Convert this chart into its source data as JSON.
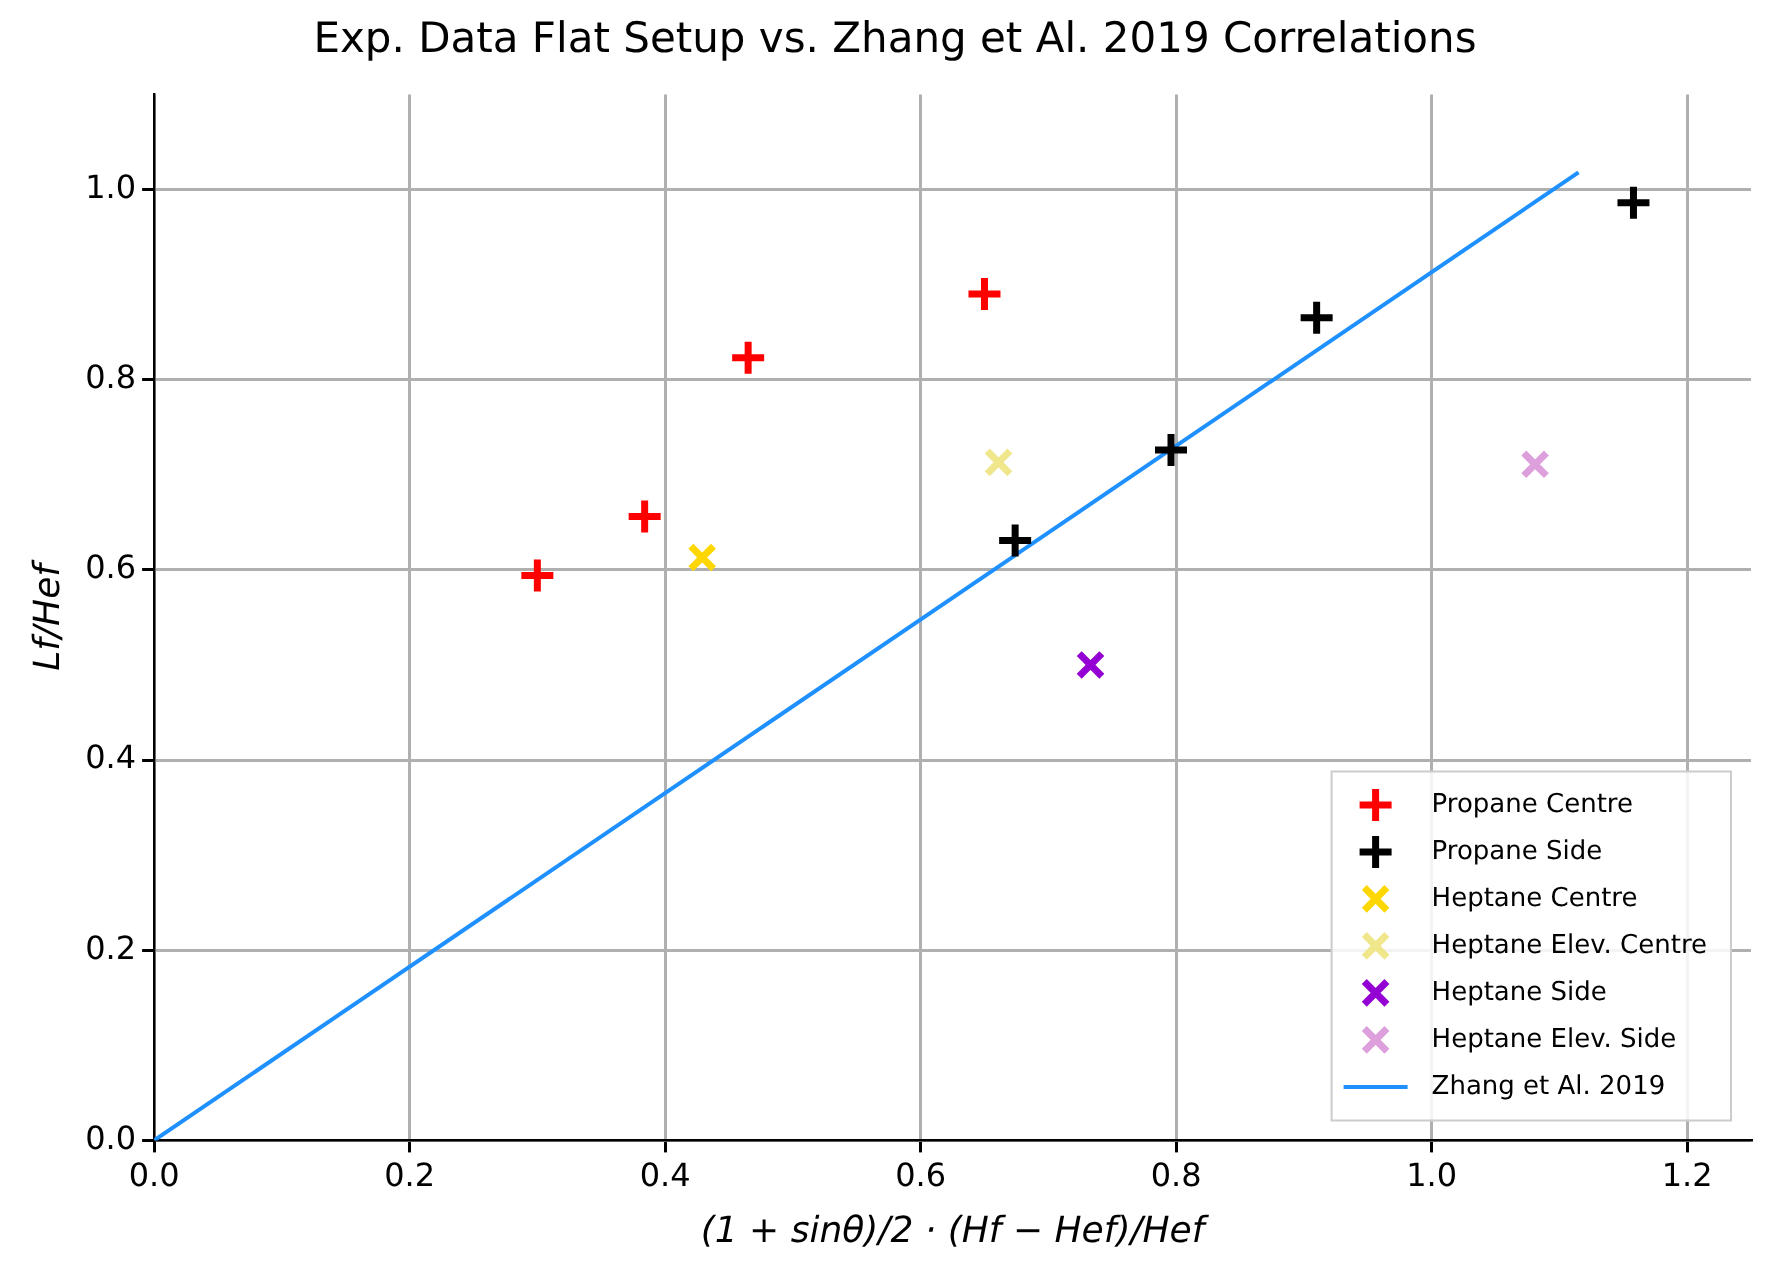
{
  "chart_data": {
    "type": "scatter",
    "title": "Exp. Data Flat Setup vs. Zhang et Al. 2019 Correlations",
    "xlabel": "(1 + sinθ)/2 · (Hf − Hef)/Hef",
    "ylabel": "Lf/Hef",
    "xlim": [
      0,
      1.25
    ],
    "xticks": [
      {
        "value": 0,
        "label": "0.0"
      },
      0.2,
      0.4,
      0.6,
      0.8,
      {
        "value": 1,
        "label": "1.0"
      },
      1.2
    ],
    "ylim": [
      0,
      1.1
    ],
    "yticks": [
      {
        "value": 0,
        "label": "0.0"
      },
      0.2,
      0.4,
      0.6,
      0.8,
      {
        "value": 1,
        "label": "1.0"
      }
    ],
    "grid": true,
    "legend": "bottom right",
    "series": [
      {
        "name": "Propane Centre",
        "color": "#ff0000",
        "marker": "plus",
        "x": [
          0.3,
          0.384,
          0.465,
          0.65
        ],
        "values": [
          0.594,
          0.656,
          0.823,
          0.89
        ]
      },
      {
        "name": "Propane Side",
        "color": "#000000",
        "marker": "plus",
        "x": [
          0.674,
          0.796,
          0.91,
          1.158
        ],
        "values": [
          0.631,
          0.726,
          0.865,
          0.986
        ]
      },
      {
        "name": "Heptane Centre",
        "color": "#ffd700",
        "marker": "cross",
        "x": [
          0.429
        ],
        "values": [
          0.613
        ]
      },
      {
        "name": "Heptane Elev. Centre",
        "color": "#f0e68c",
        "marker": "cross",
        "x": [
          0.661
        ],
        "values": [
          0.713
        ]
      },
      {
        "name": "Heptane Side",
        "color": "#9400d3",
        "marker": "cross",
        "x": [
          0.733
        ],
        "values": [
          0.5
        ]
      },
      {
        "name": "Heptane Elev. Side",
        "color": "#dda0dd",
        "marker": "cross",
        "x": [
          1.081
        ],
        "values": [
          0.711
        ]
      },
      {
        "name": "Zhang et Al. 2019",
        "type": "line",
        "color": "#1e90ff",
        "marker": "none",
        "x": [
          0,
          1.115
        ],
        "values": [
          0,
          1.018
        ]
      }
    ]
  }
}
